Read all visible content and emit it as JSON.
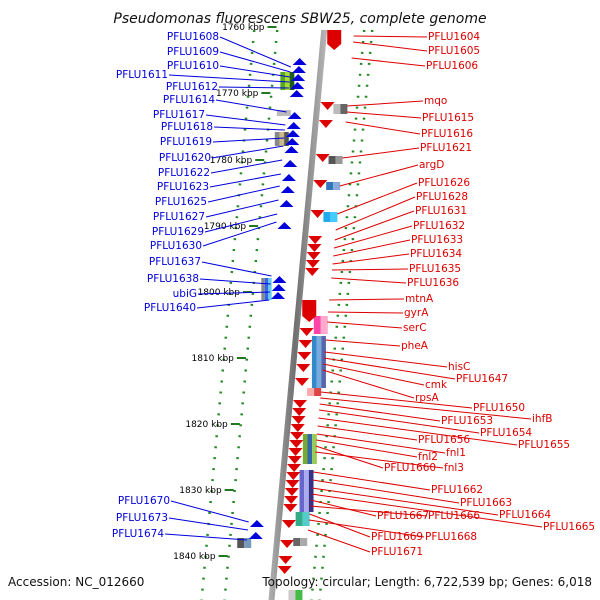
{
  "title": "Pseudomonas fluorescens SBW25, complete genome",
  "footer": {
    "accession": "Accession: NC_012660",
    "summary": "Topology: circular; Length: 6,722,539 bp; Genes: 6,018"
  },
  "colors": {
    "left_strand": "#0000dd",
    "right_strand": "#dd0000",
    "backbone": "#808080",
    "tick": "#227722"
  },
  "ticks": [
    {
      "label": "1760 kbp"
    },
    {
      "label": "1770 kbp"
    },
    {
      "label": "1780 kbp"
    },
    {
      "label": "1790 kbp"
    },
    {
      "label": "1800 kbp"
    },
    {
      "label": "1810 kbp"
    },
    {
      "label": "1820 kbp"
    },
    {
      "label": "1830 kbp"
    },
    {
      "label": "1840 kbp"
    }
  ],
  "left_labels": [
    "PFLU1608",
    "PFLU1609",
    "PFLU1610",
    "PFLU1611",
    "PFLU1612",
    "PFLU1614",
    "PFLU1617",
    "PFLU1618",
    "PFLU1619",
    "PFLU1620",
    "PFLU1622",
    "PFLU1623",
    "PFLU1625",
    "PFLU1627",
    "PFLU1629",
    "PFLU1630",
    "PFLU1637",
    "PFLU1638",
    "ubiG",
    "PFLU1640",
    "PFLU1670",
    "PFLU1673",
    "PFLU1674"
  ],
  "right_labels": [
    "PFLU1604",
    "PFLU1605",
    "PFLU1606",
    "mqo",
    "PFLU1615",
    "PFLU1616",
    "PFLU1621",
    "argD",
    "PFLU1626",
    "PFLU1628",
    "PFLU1631",
    "PFLU1632",
    "PFLU1633",
    "PFLU1634",
    "PFLU1635",
    "PFLU1636",
    "mtnA",
    "gyrA",
    "serC",
    "pheA",
    "hisC",
    "PFLU1647",
    "cmk",
    "rpsA",
    "PFLU1650",
    "ihfB",
    "PFLU1653",
    "PFLU1654",
    "PFLU1655",
    "PFLU1656",
    "fnl1",
    "fnl2",
    "PFLU1660",
    "fnl3",
    "PFLU1662",
    "PFLU1663",
    "PFLU1664",
    "PFLU1665",
    "PFLU1667",
    "PFLU1666",
    "PFLU1669",
    "PFLU1668",
    "PFLU1671"
  ]
}
